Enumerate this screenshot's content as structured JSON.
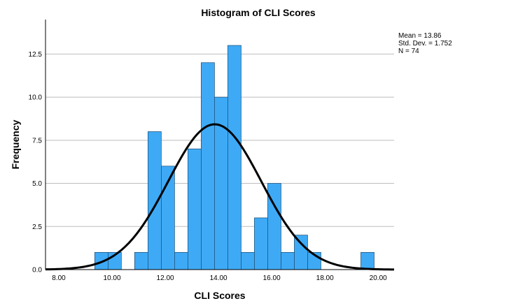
{
  "chart_data": {
    "type": "bar",
    "title": "Histogram of CLI Scores",
    "xlabel": "CLI Scores",
    "ylabel": "Frequency",
    "xlim": [
      7.5,
      20.6
    ],
    "ylim": [
      0,
      14.5
    ],
    "x_ticks": [
      "8.00",
      "10.00",
      "12.00",
      "14.00",
      "16.00",
      "18.00",
      "20.00"
    ],
    "x_tick_values": [
      8,
      10,
      12,
      14,
      16,
      18,
      20
    ],
    "y_ticks": [
      "0.0",
      "2.5",
      "5.0",
      "7.5",
      "10.0",
      "12.5"
    ],
    "y_tick_values": [
      0,
      2.5,
      5,
      7.5,
      10,
      12.5
    ],
    "bin_width": 0.5,
    "bins": [
      {
        "start": 9.35,
        "value": 1
      },
      {
        "start": 9.85,
        "value": 1
      },
      {
        "start": 10.85,
        "value": 1
      },
      {
        "start": 11.35,
        "value": 8
      },
      {
        "start": 11.85,
        "value": 6
      },
      {
        "start": 12.35,
        "value": 1
      },
      {
        "start": 12.85,
        "value": 7
      },
      {
        "start": 13.35,
        "value": 12
      },
      {
        "start": 13.85,
        "value": 10
      },
      {
        "start": 14.35,
        "value": 13
      },
      {
        "start": 14.85,
        "value": 1
      },
      {
        "start": 15.35,
        "value": 3
      },
      {
        "start": 15.85,
        "value": 5
      },
      {
        "start": 16.35,
        "value": 1
      },
      {
        "start": 16.85,
        "value": 2
      },
      {
        "start": 17.35,
        "value": 1
      },
      {
        "start": 19.35,
        "value": 1
      }
    ],
    "normal_curve": {
      "mean": 13.86,
      "sd": 1.752,
      "n": 74
    },
    "grid": "horizontal"
  },
  "stats": {
    "mean": "Mean = 13.86",
    "sd": "Std. Dev. = 1.752",
    "n": "N = 74"
  }
}
